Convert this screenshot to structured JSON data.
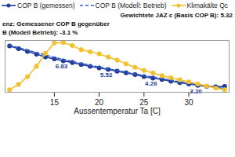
{
  "chart_data": {
    "type": "line",
    "annotations": [
      "Gewichtete JAZ c (Basis COP B): 5.32",
      "enz: Gemessener COP B gegenüber",
      "B (Modell Betrieb): -3.1 %"
    ],
    "x_label": "Aussentemperatur Ta [C]",
    "x": [
      10,
      11,
      12,
      13,
      14,
      15,
      16,
      17,
      18,
      19,
      20,
      21,
      22,
      23,
      24,
      25,
      26,
      27,
      28,
      29,
      30,
      31,
      32,
      33,
      34
    ],
    "series": [
      {
        "name": "COP B (gemessen)",
        "color": "#1f3d96",
        "marker": "circle",
        "line_style": "solid",
        "values": [
          8.7,
          8.3,
          7.9,
          7.5,
          7.1,
          6.83,
          6.55,
          6.3,
          6.0,
          5.75,
          5.52,
          5.3,
          5.05,
          4.8,
          4.55,
          4.26,
          4.05,
          3.85,
          3.6,
          3.4,
          3.2,
          3.0,
          2.85,
          2.8,
          2.85
        ],
        "value_labels": [
          null,
          null,
          null,
          null,
          null,
          "6.83",
          null,
          null,
          null,
          null,
          "5.52",
          null,
          null,
          null,
          null,
          "4.26",
          null,
          null,
          null,
          null,
          "3.20",
          null,
          null,
          null,
          null
        ]
      },
      {
        "name": "COP B (Modell: Betrieb)",
        "color": "#3a5fcd",
        "marker": "none",
        "line_style": "dashed",
        "values": [
          8.8,
          8.45,
          8.1,
          7.75,
          7.4,
          7.05,
          6.75,
          6.45,
          6.15,
          5.9,
          5.65,
          5.4,
          5.15,
          4.9,
          4.65,
          4.42,
          4.2,
          3.98,
          3.75,
          3.52,
          3.3,
          3.1,
          2.9,
          2.72,
          2.55
        ]
      },
      {
        "name": "Klimakälte Qc",
        "color": "#f2c12e",
        "marker": "circle",
        "line_style": "solid",
        "axis": "y2",
        "values": [
          5,
          15,
          30,
          50,
          75,
          95,
          96,
          90,
          82,
          78,
          74,
          68,
          62,
          55,
          48,
          42,
          37,
          32,
          28,
          24,
          20,
          16,
          12,
          8,
          5
        ]
      }
    ],
    "xlim": [
      9.5,
      34.5
    ],
    "xticks": [
      15,
      20,
      25,
      30
    ],
    "ylim": [
      2,
      9.5
    ],
    "yticks": [],
    "y2lim": [
      0,
      100
    ],
    "y2ticks": [],
    "tick_labels": "x",
    "legend": "top",
    "data_labels": true,
    "grid": false
  }
}
